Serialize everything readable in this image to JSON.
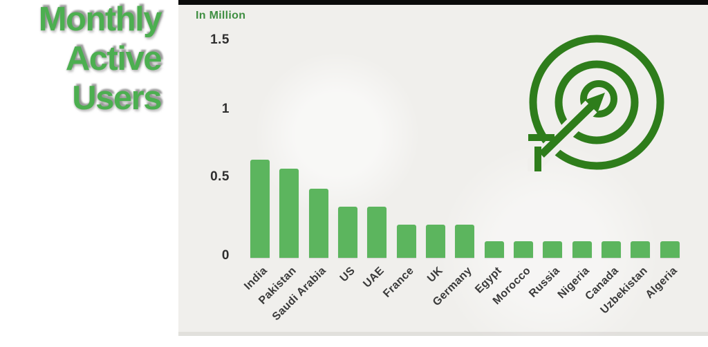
{
  "page": {
    "background": "#ffffff"
  },
  "title": {
    "lines": [
      "Monthly",
      "Active",
      "Users"
    ],
    "color": "#4caf50"
  },
  "chart": {
    "panel_bg": "#f0efec",
    "top_strip_color": "#0b0b0b",
    "unit_label": "In Million",
    "unit_label_color": "#3e8e41",
    "bar_color": "#5cb55e",
    "axis_text_color": "#2e2e2e",
    "xlabel_color": "#3a3a3a",
    "icon": {
      "name": "target-arrow-icon",
      "color": "#2e7d1b"
    }
  },
  "chart_data": {
    "type": "bar",
    "title": "Monthly Active Users",
    "ylabel": "In Million",
    "xlabel": "",
    "categories": [
      "India",
      "Pakistan",
      "Saudi Arabia",
      "US",
      "UAE",
      "France",
      "UK",
      "Germany",
      "Egypt",
      "Morocco",
      "Russia",
      "Nigeria",
      "Canada",
      "Uzbekistan",
      "Algeria"
    ],
    "values": [
      0.65,
      0.59,
      0.46,
      0.34,
      0.34,
      0.22,
      0.22,
      0.22,
      0.11,
      0.11,
      0.11,
      0.11,
      0.11,
      0.11,
      0.11
    ],
    "ylim": [
      0,
      1.5
    ],
    "yticks": [
      1.5,
      1,
      0.5,
      0
    ],
    "ytick_labels": [
      "1.5",
      "1",
      "0.5",
      "0"
    ],
    "grid": false,
    "legend": false,
    "bar_color": "#5cb55e"
  }
}
